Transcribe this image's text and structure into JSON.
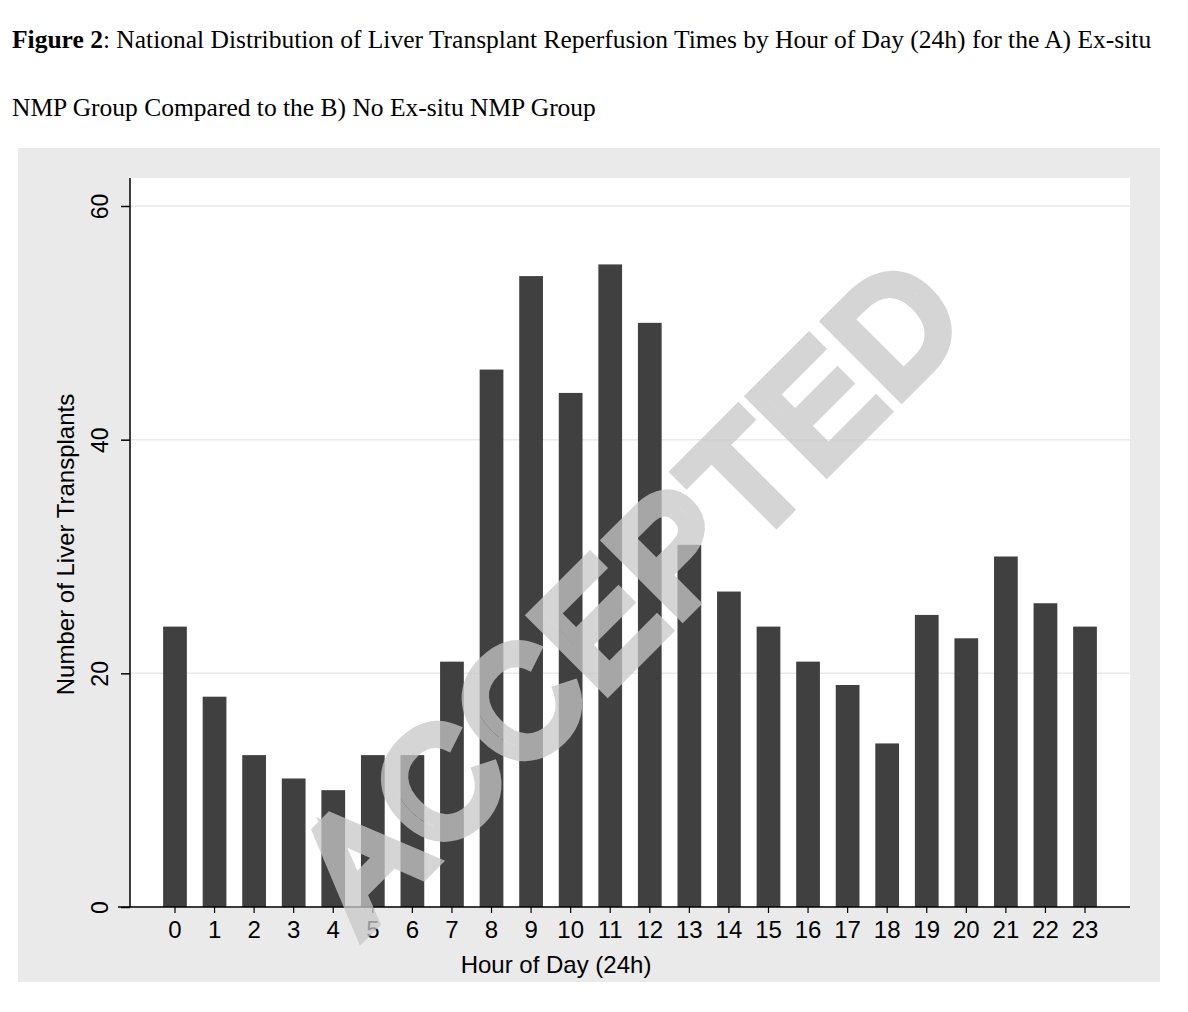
{
  "chart_data": {
    "type": "bar",
    "title": "Figure 2: National Distribution of Liver Transplant Reperfusion Times by Hour of Day (24h) for the A) Ex-situ NMP Group Compared to the  B) No Ex-situ NMP Group",
    "x_label": "Hour of Day (24h)",
    "y_label": "Number of Liver Transplants",
    "annotations": [
      "ACCEPTED"
    ],
    "categories": [
      "0",
      "1",
      "2",
      "3",
      "4",
      "5",
      "6",
      "7",
      "8",
      "9",
      "10",
      "11",
      "12",
      "13",
      "14",
      "15",
      "16",
      "17",
      "18",
      "19",
      "20",
      "21",
      "22",
      "23"
    ],
    "values": [
      24,
      18,
      13,
      11,
      10,
      13,
      13,
      21,
      46,
      54,
      44,
      55,
      50,
      31,
      27,
      24,
      21,
      19,
      14,
      25,
      23,
      30,
      26,
      24
    ],
    "color": "#404040",
    "ylim": [
      0,
      60
    ],
    "yticks": [
      0,
      20,
      40,
      60
    ],
    "grid": true
  }
}
